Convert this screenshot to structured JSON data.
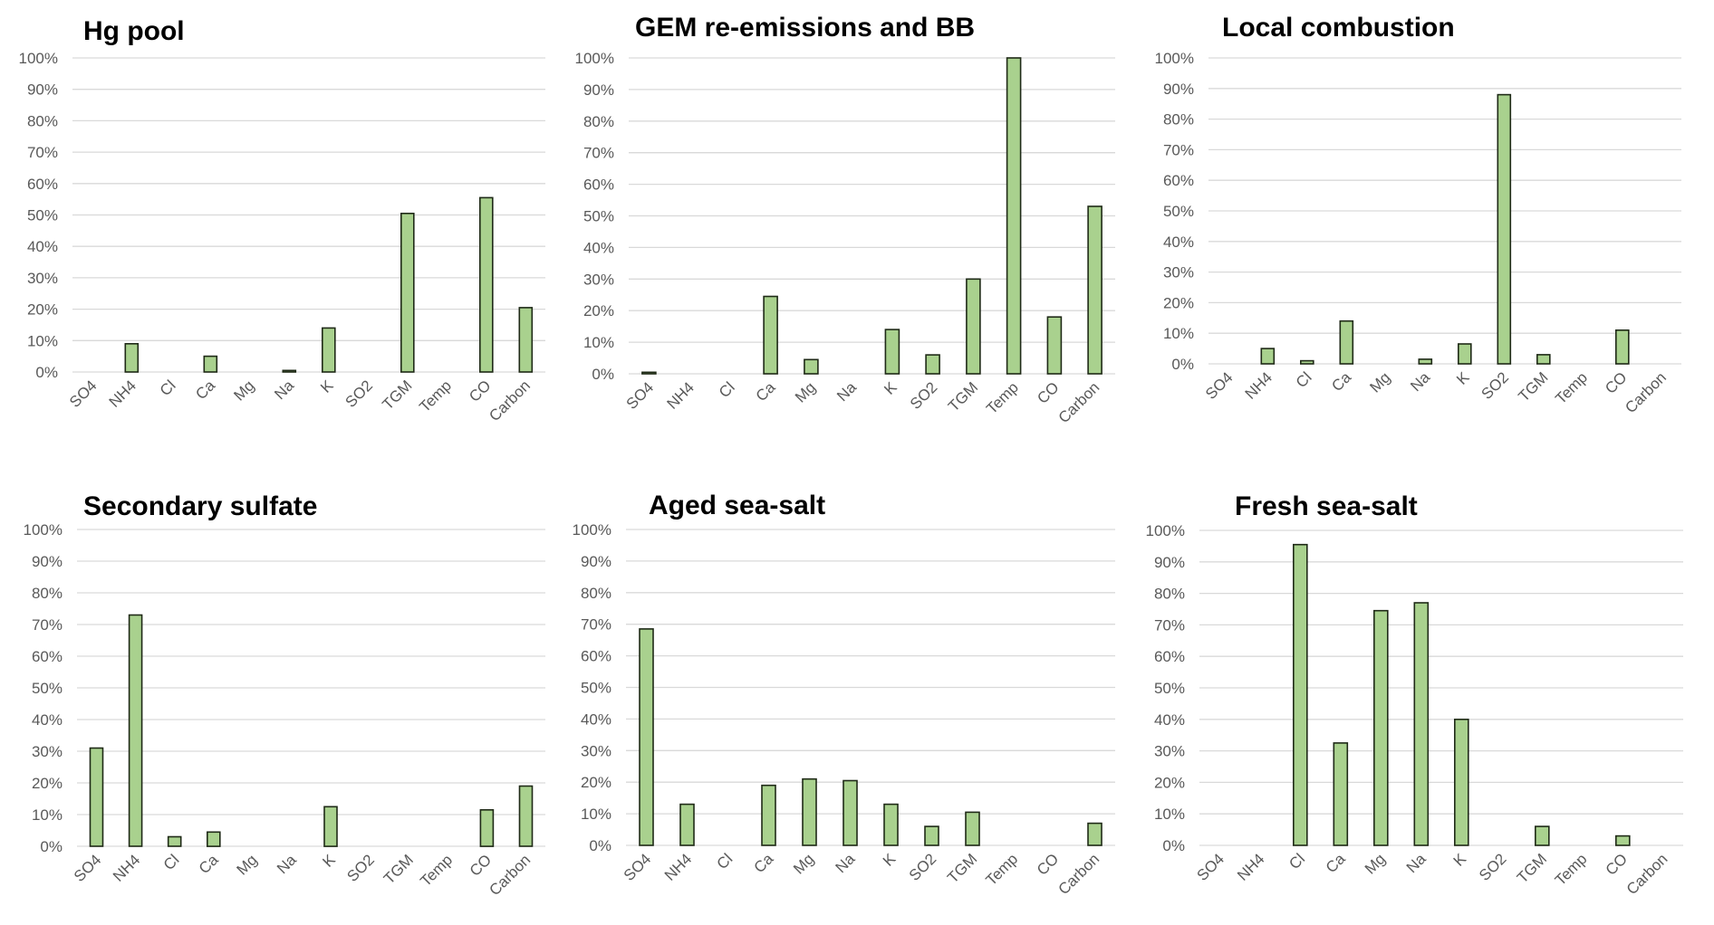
{
  "chart_data": [
    {
      "type": "bar",
      "title": "Hg pool",
      "categories": [
        "SO4",
        "NH4",
        "Cl",
        "Ca",
        "Mg",
        "Na",
        "K",
        "SO2",
        "TGM",
        "Temp",
        "CO",
        "Carbon"
      ],
      "values": [
        0,
        9,
        0,
        5,
        0,
        0.5,
        14,
        0,
        50.5,
        0,
        55.5,
        20.5
      ],
      "y_ticks": [
        "0%",
        "10%",
        "20%",
        "30%",
        "40%",
        "50%",
        "60%",
        "70%",
        "80%",
        "90%",
        "100%"
      ],
      "ylim": [
        0,
        100
      ],
      "grid": true,
      "legend": "none",
      "colors": {
        "bar_fill": "#a9d18e",
        "bar_stroke": "#1f2a17"
      }
    },
    {
      "type": "bar",
      "title": "GEM re-emissions and BB",
      "categories": [
        "SO4",
        "NH4",
        "Cl",
        "Ca",
        "Mg",
        "Na",
        "K",
        "SO2",
        "TGM",
        "Temp",
        "CO",
        "Carbon"
      ],
      "values": [
        0.5,
        0,
        0,
        24.5,
        4.5,
        0,
        14,
        6,
        30,
        100,
        18,
        53
      ],
      "y_ticks": [
        "0%",
        "10%",
        "20%",
        "30%",
        "40%",
        "50%",
        "60%",
        "70%",
        "80%",
        "90%",
        "100%"
      ],
      "ylim": [
        0,
        100
      ],
      "grid": true,
      "legend": "none",
      "colors": {
        "bar_fill": "#a9d18e",
        "bar_stroke": "#1f2a17"
      }
    },
    {
      "type": "bar",
      "title": "Local combustion",
      "categories": [
        "SO4",
        "NH4",
        "Cl",
        "Ca",
        "Mg",
        "Na",
        "K",
        "SO2",
        "TGM",
        "Temp",
        "CO",
        "Carbon"
      ],
      "values": [
        0,
        5,
        1,
        14,
        0,
        1.5,
        6.5,
        88,
        3,
        0,
        11,
        0
      ],
      "y_ticks": [
        "0%",
        "10%",
        "20%",
        "30%",
        "40%",
        "50%",
        "60%",
        "70%",
        "80%",
        "90%",
        "100%"
      ],
      "ylim": [
        0,
        100
      ],
      "grid": true,
      "legend": "none",
      "colors": {
        "bar_fill": "#a9d18e",
        "bar_stroke": "#1f2a17"
      }
    },
    {
      "type": "bar",
      "title": "Secondary sulfate",
      "categories": [
        "SO4",
        "NH4",
        "Cl",
        "Ca",
        "Mg",
        "Na",
        "K",
        "SO2",
        "TGM",
        "Temp",
        "CO",
        "Carbon"
      ],
      "values": [
        31,
        73,
        3,
        4.5,
        0,
        0,
        12.5,
        0,
        0,
        0,
        11.5,
        19
      ],
      "y_ticks": [
        "0%",
        "10%",
        "20%",
        "30%",
        "40%",
        "50%",
        "60%",
        "70%",
        "80%",
        "90%",
        "100%"
      ],
      "ylim": [
        0,
        100
      ],
      "grid": true,
      "legend": "none",
      "colors": {
        "bar_fill": "#a9d18e",
        "bar_stroke": "#1f2a17"
      }
    },
    {
      "type": "bar",
      "title": "Aged sea-salt",
      "categories": [
        "SO4",
        "NH4",
        "Cl",
        "Ca",
        "Mg",
        "Na",
        "K",
        "SO2",
        "TGM",
        "Temp",
        "CO",
        "Carbon"
      ],
      "values": [
        68.5,
        13,
        0,
        19,
        21,
        20.5,
        13,
        6,
        10.5,
        0,
        0,
        7
      ],
      "y_ticks": [
        "0%",
        "10%",
        "20%",
        "30%",
        "40%",
        "50%",
        "60%",
        "70%",
        "80%",
        "90%",
        "100%"
      ],
      "ylim": [
        0,
        100
      ],
      "grid": true,
      "legend": "none",
      "colors": {
        "bar_fill": "#a9d18e",
        "bar_stroke": "#1f2a17"
      }
    },
    {
      "type": "bar",
      "title": "Fresh sea-salt",
      "categories": [
        "SO4",
        "NH4",
        "Cl",
        "Ca",
        "Mg",
        "Na",
        "K",
        "SO2",
        "TGM",
        "Temp",
        "CO",
        "Carbon"
      ],
      "values": [
        0,
        0,
        95.5,
        32.5,
        74.5,
        77,
        40,
        0,
        6,
        0,
        3,
        0
      ],
      "y_ticks": [
        "0%",
        "10%",
        "20%",
        "30%",
        "40%",
        "50%",
        "60%",
        "70%",
        "80%",
        "90%",
        "100%"
      ],
      "ylim": [
        0,
        100
      ],
      "grid": true,
      "legend": "none",
      "colors": {
        "bar_fill": "#a9d18e",
        "bar_stroke": "#1f2a17"
      }
    }
  ]
}
